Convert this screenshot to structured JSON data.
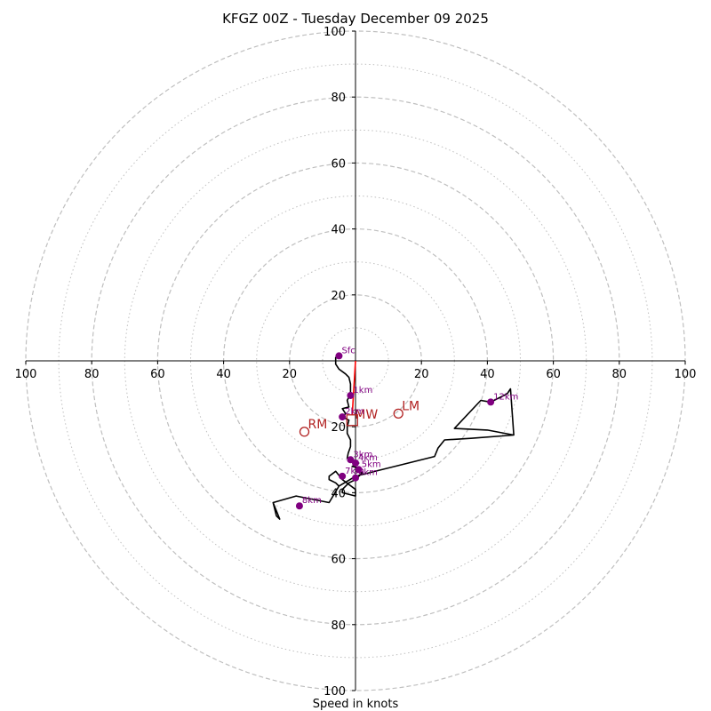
{
  "chart_data": {
    "type": "hodograph",
    "title": "KFGZ 00Z - Tuesday December 09 2025",
    "xlabel": "Speed in knots",
    "units": "knots",
    "rings_major": [
      20,
      40,
      60,
      80,
      100
    ],
    "rings_minor": [
      10,
      30,
      50,
      70,
      90
    ],
    "x_tick_labels": [
      "100",
      "80",
      "60",
      "40",
      "20",
      "20",
      "40",
      "60",
      "80",
      "100"
    ],
    "y_tick_labels_top": [
      "100",
      "80",
      "60",
      "40",
      "20"
    ],
    "y_tick_labels_bottom": [
      "20",
      "40",
      "60",
      "80",
      "100"
    ],
    "xlim": [
      -100,
      100
    ],
    "ylim": [
      -100,
      100
    ],
    "grid": true,
    "hodograph_trace_uv": [
      [
        -5,
        2
      ],
      [
        -6,
        1
      ],
      [
        -6,
        -1
      ],
      [
        -5,
        -2.5
      ],
      [
        -3,
        -4
      ],
      [
        -2,
        -5
      ],
      [
        -1.5,
        -7
      ],
      [
        -1.5,
        -10
      ],
      [
        -2.5,
        -12
      ],
      [
        -2,
        -14
      ],
      [
        -4,
        -14.5
      ],
      [
        -3,
        -16
      ],
      [
        -4,
        -17
      ],
      [
        -2,
        -18
      ],
      [
        -2.5,
        -20
      ],
      [
        -2.5,
        -22
      ],
      [
        -1.5,
        -24
      ],
      [
        -1.5,
        -26
      ],
      [
        -2.2,
        -28
      ],
      [
        -2.5,
        -29.5
      ],
      [
        -1,
        -30
      ],
      [
        0,
        -31
      ],
      [
        1,
        -31
      ],
      [
        -1,
        -32
      ],
      [
        1,
        -32.5
      ],
      [
        0,
        -33
      ],
      [
        2,
        -34
      ],
      [
        1,
        -35
      ],
      [
        0,
        -36
      ],
      [
        -2,
        -37
      ],
      [
        -4,
        -39
      ],
      [
        -4,
        -40
      ],
      [
        0,
        -41
      ],
      [
        0,
        -39
      ],
      [
        -4,
        -36
      ],
      [
        -6,
        -33.5
      ],
      [
        -8,
        -35
      ],
      [
        -8,
        -36
      ],
      [
        -6,
        -37
      ],
      [
        -5,
        -38
      ],
      [
        -8,
        -43
      ],
      [
        -18,
        -41
      ],
      [
        -25,
        -43
      ],
      [
        -24,
        -47
      ],
      [
        -23,
        -48
      ],
      [
        -25,
        -43
      ],
      [
        -18,
        -41
      ],
      [
        -8,
        -43
      ],
      [
        -5,
        -38
      ],
      [
        0,
        -35
      ],
      [
        8,
        -33
      ],
      [
        16,
        -31
      ],
      [
        24,
        -29
      ],
      [
        25,
        -26.5
      ],
      [
        27,
        -24
      ],
      [
        35,
        -23.5
      ],
      [
        48,
        -22.5
      ],
      [
        47,
        -8.5
      ],
      [
        48,
        -22.5
      ],
      [
        40,
        -21
      ],
      [
        30,
        -20.5
      ],
      [
        38,
        -12
      ],
      [
        41,
        -12.5
      ],
      [
        46,
        -10
      ],
      [
        47,
        -8.5
      ]
    ],
    "height_markers": [
      {
        "label": "Sfc",
        "u": -5,
        "v": 1.5
      },
      {
        "label": "1km",
        "u": -1.5,
        "v": -10.5
      },
      {
        "label": "2km",
        "u": -4,
        "v": -17
      },
      {
        "label": "3km",
        "u": -1.5,
        "v": -30
      },
      {
        "label": "4km",
        "u": 0,
        "v": -31
      },
      {
        "label": "5km",
        "u": 1,
        "v": -33
      },
      {
        "label": "6km",
        "u": 0,
        "v": -35.5
      },
      {
        "label": "7km",
        "u": -4,
        "v": -35
      },
      {
        "label": "8km",
        "u": -17,
        "v": -44
      },
      {
        "label": "12km",
        "u": 41,
        "v": -12.5
      }
    ],
    "shear_vector_uv": [
      [
        0,
        0
      ],
      [
        -1,
        -16.5
      ]
    ],
    "storm_motion": [
      {
        "label": "RM",
        "u": -15.5,
        "v": -21.5
      },
      {
        "label": "LM",
        "u": 13,
        "v": -16
      },
      {
        "label": "MW",
        "u": -1,
        "v": -18
      }
    ],
    "colors": {
      "trace": "#000000",
      "markers": "#800080",
      "shear": "#ff0000",
      "storm": "#b22222",
      "grid": "#bfbfbf",
      "axes": "#000000"
    }
  }
}
